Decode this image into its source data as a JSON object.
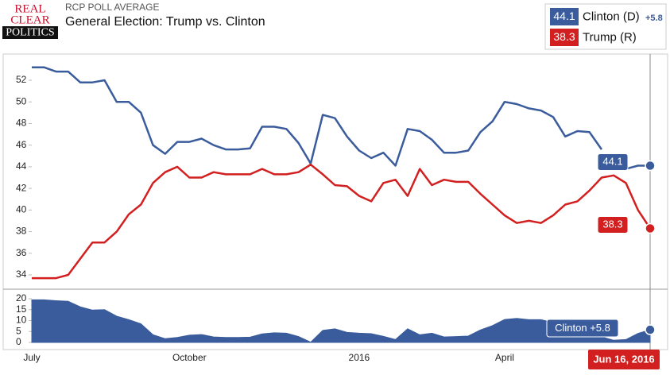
{
  "header": {
    "logo": [
      "REAL",
      "CLEAR",
      "POLITICS"
    ],
    "kicker": "RCP POLL AVERAGE",
    "title": "General Election: Trump vs. Clinton",
    "spread_label": "+5.8",
    "date": "Jun 16, 2016"
  },
  "chart_data": [
    {
      "type": "line",
      "categories": [
        "July",
        null,
        null,
        null,
        null,
        null,
        null,
        null,
        null,
        null,
        null,
        null,
        null,
        "October",
        null,
        null,
        null,
        null,
        null,
        null,
        null,
        null,
        null,
        null,
        null,
        null,
        null,
        "2016",
        null,
        null,
        null,
        null,
        null,
        null,
        null,
        null,
        null,
        null,
        null,
        "April",
        null,
        null,
        null,
        null,
        null,
        null,
        null,
        null,
        null,
        null,
        null,
        null
      ],
      "series": [
        {
          "name": "Clinton (D)",
          "color": "#3a5c9c",
          "values": [
            53.2,
            53.2,
            52.8,
            52.8,
            51.8,
            51.8,
            52.0,
            50.0,
            50.0,
            49.0,
            46.0,
            45.2,
            46.3,
            46.3,
            46.6,
            46.0,
            45.6,
            45.6,
            45.7,
            47.7,
            47.7,
            47.5,
            46.2,
            44.3,
            48.8,
            48.5,
            46.8,
            45.5,
            44.8,
            45.3,
            44.1,
            47.5,
            47.3,
            46.5,
            45.3,
            45.3,
            45.5,
            47.2,
            48.2,
            50.0,
            49.8,
            49.4,
            49.2,
            48.6,
            46.8,
            47.3,
            47.2,
            45.6,
            null,
            43.8,
            44.1,
            44.1
          ]
        },
        {
          "name": "Trump (R)",
          "color": "#d21f1f",
          "values": [
            33.7,
            33.7,
            33.7,
            34.0,
            35.5,
            37.0,
            37.0,
            38.0,
            39.6,
            40.5,
            42.5,
            43.5,
            44.0,
            43.0,
            43.0,
            43.5,
            43.3,
            43.3,
            43.3,
            43.8,
            43.3,
            43.3,
            43.5,
            44.2,
            43.3,
            42.3,
            42.2,
            41.3,
            40.8,
            42.5,
            42.8,
            41.3,
            43.8,
            42.3,
            42.8,
            42.6,
            42.6,
            41.5,
            40.5,
            39.5,
            38.8,
            39.0,
            38.8,
            39.5,
            40.5,
            40.8,
            41.8,
            43.0,
            43.2,
            42.5,
            40.0,
            38.3
          ]
        }
      ],
      "ylim": [
        33,
        54
      ],
      "yticks": [
        34,
        36,
        38,
        40,
        42,
        44,
        46,
        48,
        50,
        52
      ]
    },
    {
      "type": "area",
      "color": "#3a5c9c",
      "annotation": "Clinton +5.8",
      "values": [
        19.5,
        19.5,
        19.1,
        18.8,
        16.3,
        14.8,
        15.0,
        12.0,
        10.4,
        8.5,
        3.5,
        1.7,
        2.3,
        3.3,
        3.6,
        2.5,
        2.3,
        2.3,
        2.4,
        3.9,
        4.4,
        4.2,
        2.7,
        0.1,
        5.5,
        6.2,
        4.6,
        4.2,
        4.0,
        2.8,
        1.3,
        6.2,
        3.5,
        4.2,
        2.5,
        2.7,
        2.9,
        5.7,
        7.7,
        10.5,
        11.0,
        10.4,
        10.4,
        9.1,
        6.3,
        6.5,
        5.4,
        2.6,
        1.0,
        1.3,
        4.1,
        5.8
      ],
      "ylim": [
        0,
        22
      ],
      "yticks": [
        0,
        5,
        10,
        15,
        20
      ]
    }
  ]
}
